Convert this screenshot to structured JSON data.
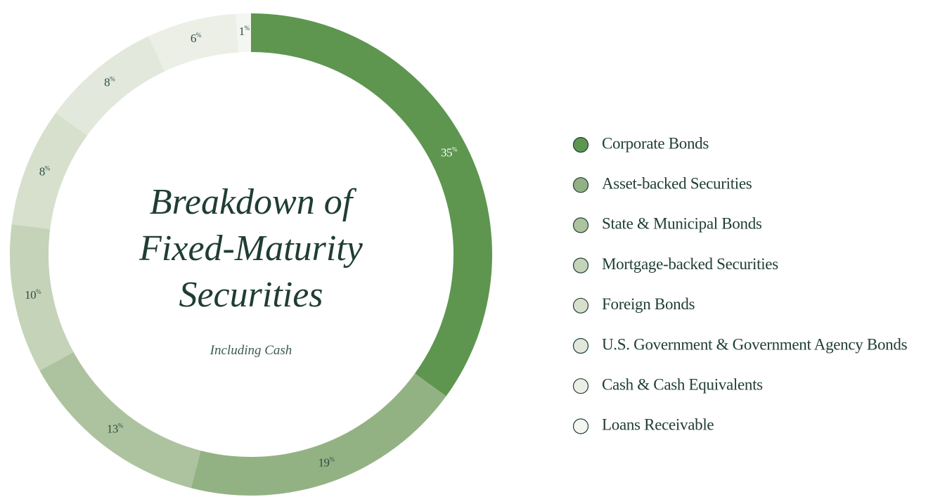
{
  "chart_data": {
    "type": "donut",
    "title": "Breakdown of Fixed-Maturity Securities",
    "subtitle": "Including Cash",
    "categories": [
      "Corporate Bonds",
      "Asset-backed Securities",
      "State & Municipal Bonds",
      "Mortgage-backed Securities",
      "Foreign Bonds",
      "U.S. Government & Government Agency Bonds",
      "Cash & Cash Equivalents",
      "Loans Receivable"
    ],
    "values": [
      35,
      19,
      13,
      10,
      8,
      8,
      6,
      1
    ],
    "value_labels": [
      "35%",
      "19%",
      "13%",
      "10%",
      "8%",
      "8%",
      "6%",
      "1%"
    ],
    "colors": [
      "#5e9650",
      "#93b283",
      "#adc39f",
      "#c5d3b9",
      "#d6e0cd",
      "#e2e8dc",
      "#ebefe6",
      "#f4f6f1"
    ]
  }
}
